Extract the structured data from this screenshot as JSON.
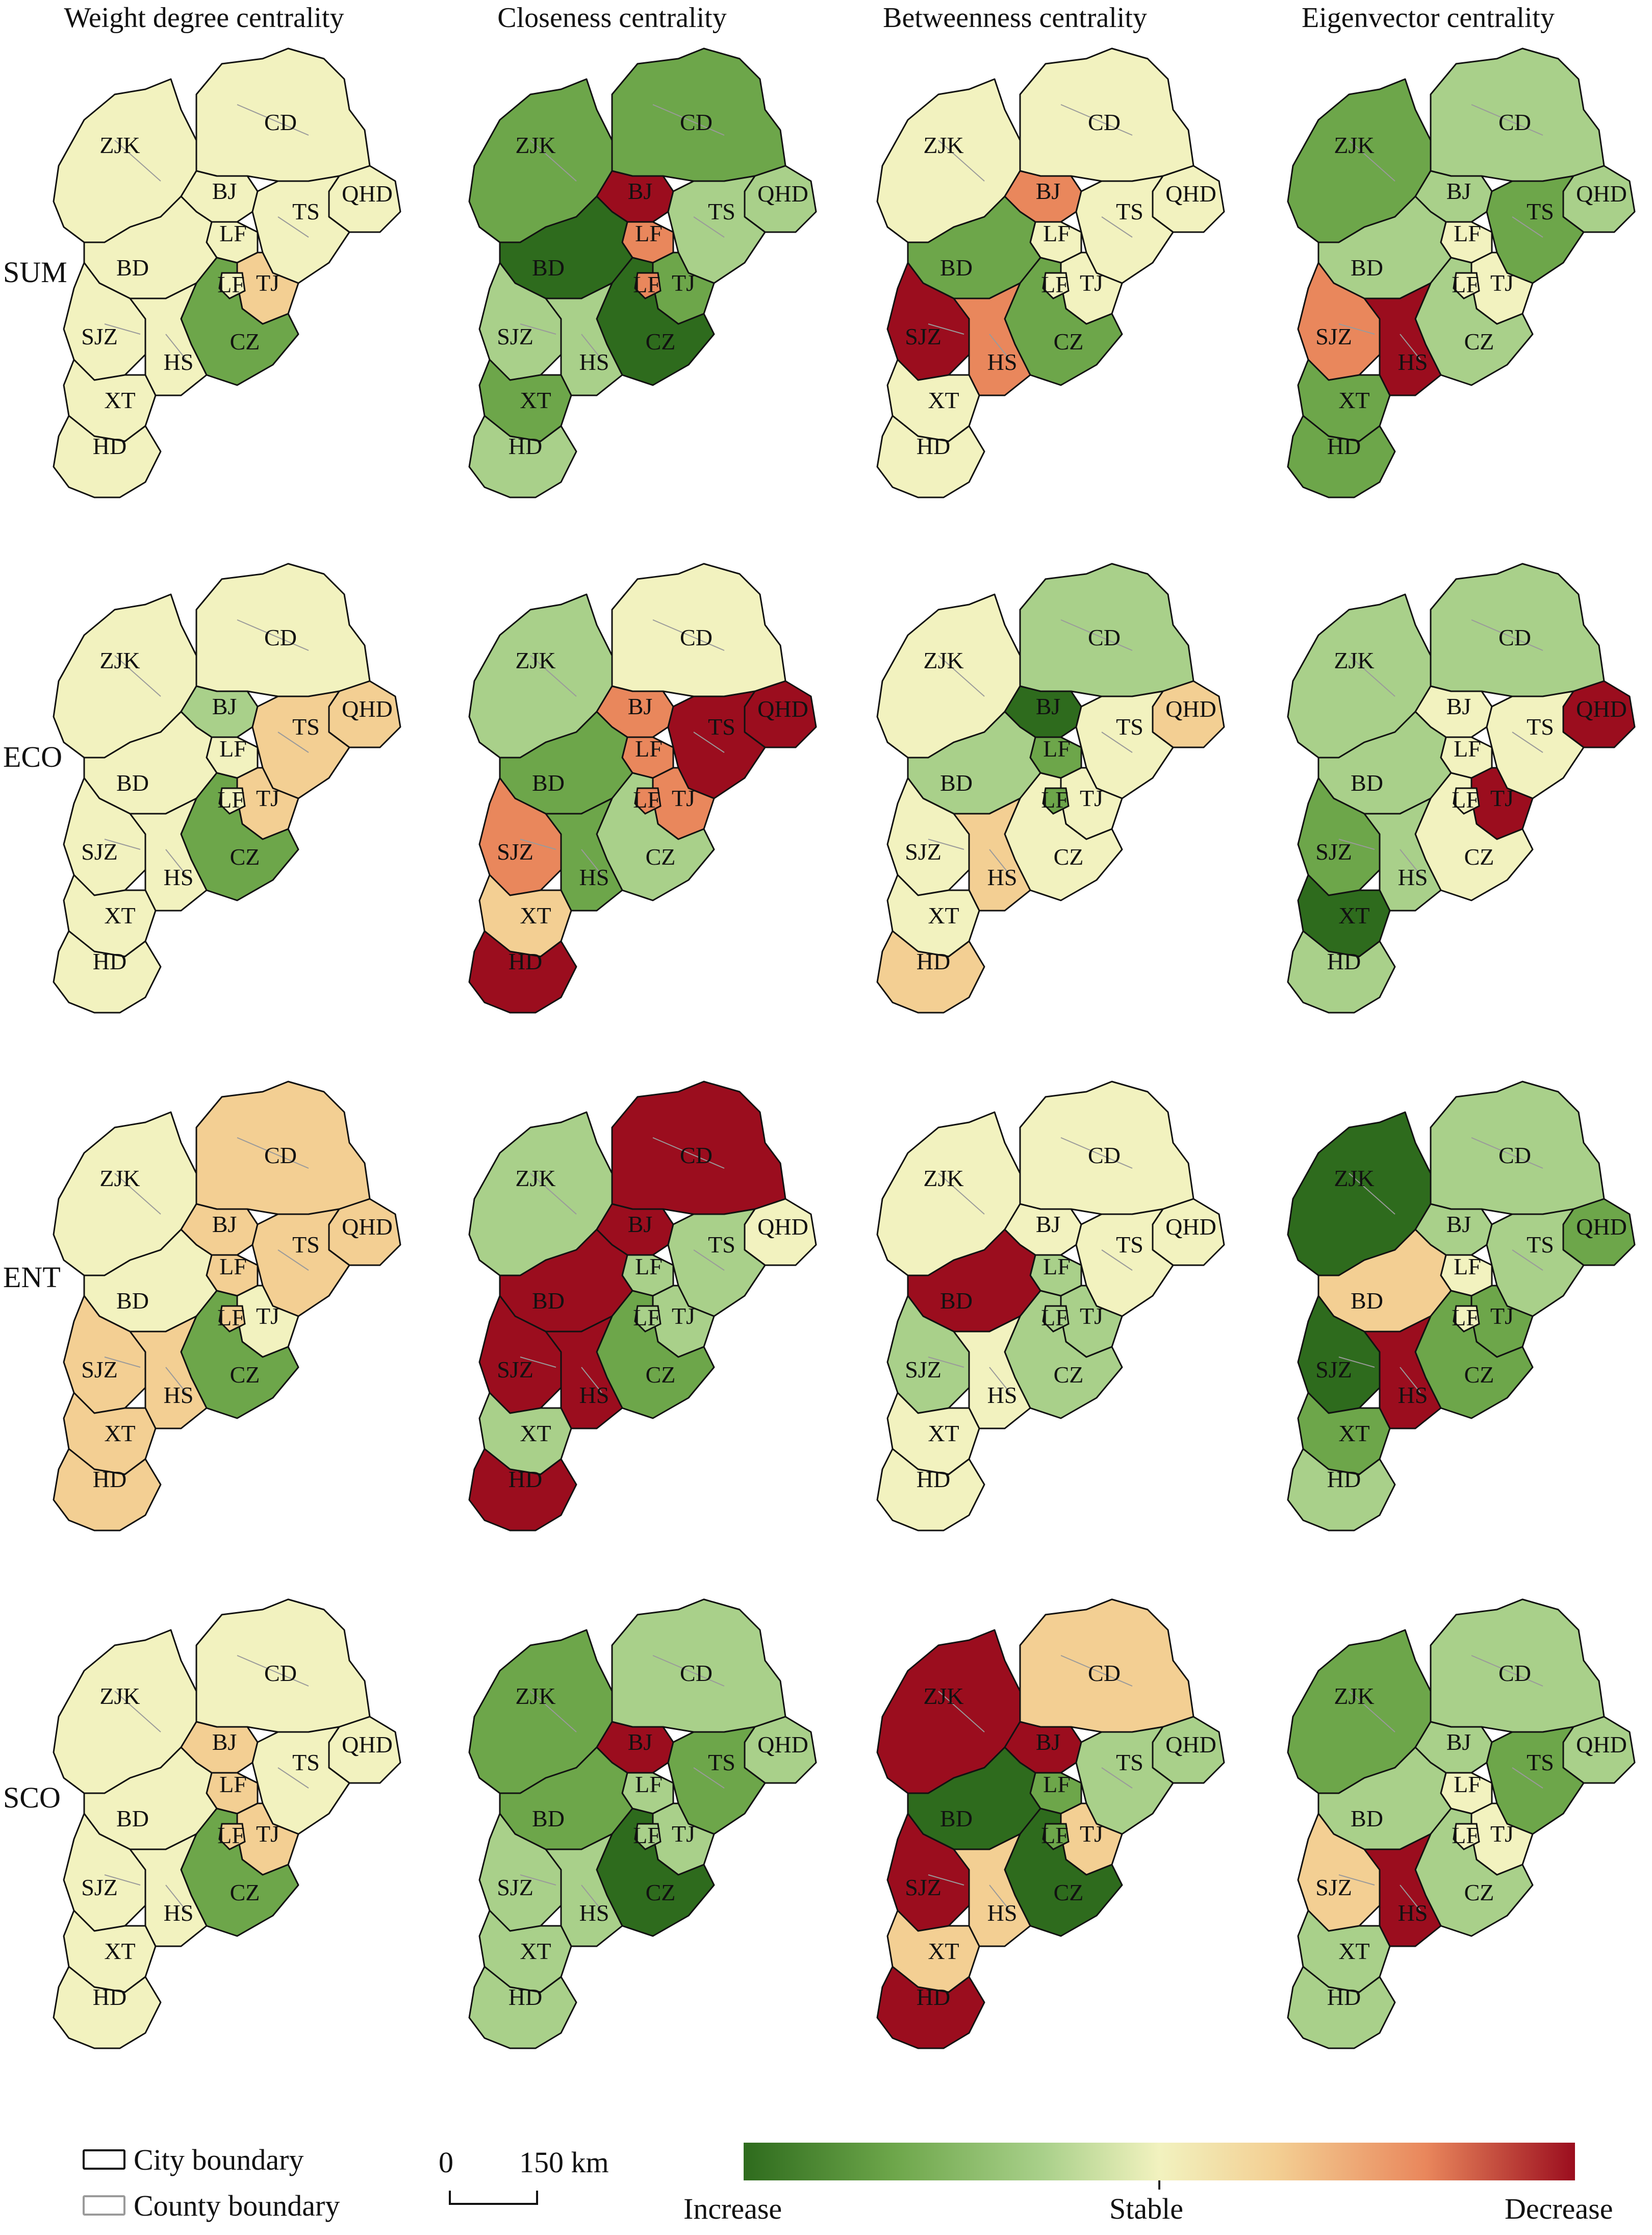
{
  "columns": [
    "Weight degree centrality",
    "Closeness centrality",
    "Betweenness centrality",
    "Eigenvector centrality"
  ],
  "rows": [
    "SUM",
    "ECO",
    "ENT",
    "SCO"
  ],
  "cities": [
    "CD",
    "ZJK",
    "BJ",
    "QHD",
    "LF",
    "TS",
    "BD",
    "TJ",
    "SJZ",
    "CZ",
    "HS",
    "XT",
    "HD"
  ],
  "palette": {
    "increase_strong": "#2e6b1d",
    "increase": "#6da64a",
    "increase_light": "#a9d08a",
    "stable": "#f2f2bf",
    "decrease_light": "#f3cf93",
    "decrease": "#e9875c",
    "decrease_strong": "#9b0d1e",
    "city_boundary": "#111111",
    "county_boundary": "#9a9a9a"
  },
  "grid": [
    [
      {
        "CD": "stable",
        "ZJK": "stable",
        "BJ": "stable",
        "QHD": "stable",
        "LF": "stable",
        "TS": "stable",
        "BD": "stable",
        "TJ": "decrease_light",
        "SJZ": "stable",
        "CZ": "increase",
        "HS": "stable",
        "XT": "stable",
        "HD": "stable"
      },
      {
        "CD": "increase",
        "ZJK": "increase",
        "BJ": "decrease_strong",
        "QHD": "increase_light",
        "LF": "decrease",
        "TS": "increase_light",
        "BD": "increase_strong",
        "TJ": "increase",
        "SJZ": "increase_light",
        "CZ": "increase_strong",
        "HS": "increase_light",
        "XT": "increase",
        "HD": "increase_light"
      },
      {
        "CD": "stable",
        "ZJK": "stable",
        "BJ": "decrease",
        "QHD": "stable",
        "LF": "stable",
        "TS": "stable",
        "BD": "increase",
        "TJ": "stable",
        "SJZ": "decrease_strong",
        "CZ": "increase",
        "HS": "decrease",
        "XT": "stable",
        "HD": "stable"
      },
      {
        "CD": "increase_light",
        "ZJK": "increase",
        "BJ": "increase_light",
        "QHD": "increase_light",
        "LF": "stable",
        "TS": "increase",
        "BD": "increase_light",
        "TJ": "stable",
        "SJZ": "decrease",
        "CZ": "increase_light",
        "HS": "decrease_strong",
        "XT": "increase",
        "HD": "increase"
      }
    ],
    [
      {
        "CD": "stable",
        "ZJK": "stable",
        "BJ": "increase_light",
        "QHD": "decrease_light",
        "LF": "stable",
        "TS": "decrease_light",
        "BD": "stable",
        "TJ": "decrease_light",
        "SJZ": "stable",
        "CZ": "increase",
        "HS": "stable",
        "XT": "stable",
        "HD": "stable"
      },
      {
        "CD": "stable",
        "ZJK": "increase_light",
        "BJ": "decrease",
        "QHD": "decrease_strong",
        "LF": "decrease",
        "TS": "decrease_strong",
        "BD": "increase",
        "TJ": "decrease",
        "SJZ": "decrease",
        "CZ": "increase_light",
        "HS": "increase",
        "XT": "decrease_light",
        "HD": "decrease_strong"
      },
      {
        "CD": "increase_light",
        "ZJK": "stable",
        "BJ": "increase_strong",
        "QHD": "decrease_light",
        "LF": "increase",
        "TS": "stable",
        "BD": "increase_light",
        "TJ": "stable",
        "SJZ": "stable",
        "CZ": "stable",
        "HS": "decrease_light",
        "XT": "stable",
        "HD": "decrease_light"
      },
      {
        "CD": "increase_light",
        "ZJK": "increase_light",
        "BJ": "stable",
        "QHD": "decrease_strong",
        "LF": "stable",
        "TS": "stable",
        "BD": "increase_light",
        "TJ": "decrease_strong",
        "SJZ": "increase",
        "CZ": "stable",
        "HS": "increase_light",
        "XT": "increase_strong",
        "HD": "increase_light"
      }
    ],
    [
      {
        "CD": "decrease_light",
        "ZJK": "stable",
        "BJ": "decrease_light",
        "QHD": "decrease_light",
        "LF": "decrease_light",
        "TS": "decrease_light",
        "BD": "stable",
        "TJ": "stable",
        "SJZ": "decrease_light",
        "CZ": "increase",
        "HS": "decrease_light",
        "XT": "decrease_light",
        "HD": "decrease_light"
      },
      {
        "CD": "decrease_strong",
        "ZJK": "increase_light",
        "BJ": "decrease_strong",
        "QHD": "stable",
        "LF": "increase_light",
        "TS": "increase_light",
        "BD": "decrease_strong",
        "TJ": "increase_light",
        "SJZ": "decrease_strong",
        "CZ": "increase",
        "HS": "decrease_strong",
        "XT": "increase_light",
        "HD": "decrease_strong"
      },
      {
        "CD": "stable",
        "ZJK": "stable",
        "BJ": "stable",
        "QHD": "stable",
        "LF": "increase_light",
        "TS": "stable",
        "BD": "decrease_strong",
        "TJ": "increase_light",
        "SJZ": "increase_light",
        "CZ": "increase_light",
        "HS": "stable",
        "XT": "stable",
        "HD": "stable"
      },
      {
        "CD": "increase_light",
        "ZJK": "increase_strong",
        "BJ": "increase_light",
        "QHD": "increase",
        "LF": "stable",
        "TS": "increase_light",
        "BD": "decrease_light",
        "TJ": "increase",
        "SJZ": "increase_strong",
        "CZ": "increase",
        "HS": "decrease_strong",
        "XT": "increase",
        "HD": "increase_light"
      }
    ],
    [
      {
        "CD": "stable",
        "ZJK": "stable",
        "BJ": "decrease_light",
        "QHD": "stable",
        "LF": "decrease_light",
        "TS": "stable",
        "BD": "stable",
        "TJ": "decrease_light",
        "SJZ": "stable",
        "CZ": "increase",
        "HS": "stable",
        "XT": "stable",
        "HD": "stable"
      },
      {
        "CD": "increase_light",
        "ZJK": "increase",
        "BJ": "decrease_strong",
        "QHD": "increase_light",
        "LF": "increase_light",
        "TS": "increase",
        "BD": "increase",
        "TJ": "increase_light",
        "SJZ": "increase_light",
        "CZ": "increase_strong",
        "HS": "increase_light",
        "XT": "increase_light",
        "HD": "increase_light"
      },
      {
        "CD": "decrease_light",
        "ZJK": "decrease_strong",
        "BJ": "decrease_strong",
        "QHD": "increase_light",
        "LF": "increase",
        "TS": "increase_light",
        "BD": "increase_strong",
        "TJ": "decrease_light",
        "SJZ": "decrease_strong",
        "CZ": "increase_strong",
        "HS": "decrease_light",
        "XT": "decrease_light",
        "HD": "decrease_strong"
      },
      {
        "CD": "increase_light",
        "ZJK": "increase",
        "BJ": "increase_light",
        "QHD": "increase_light",
        "LF": "stable",
        "TS": "increase",
        "BD": "increase_light",
        "TJ": "stable",
        "SJZ": "decrease_light",
        "CZ": "increase_light",
        "HS": "decrease_strong",
        "XT": "increase_light",
        "HD": "increase_light"
      }
    ]
  ],
  "legend": {
    "city_boundary": "City boundary",
    "county_boundary": "County boundary",
    "scale_zero": "0",
    "scale_label": "150 km",
    "increase": "Increase",
    "stable": "Stable",
    "decrease": "Decrease"
  }
}
